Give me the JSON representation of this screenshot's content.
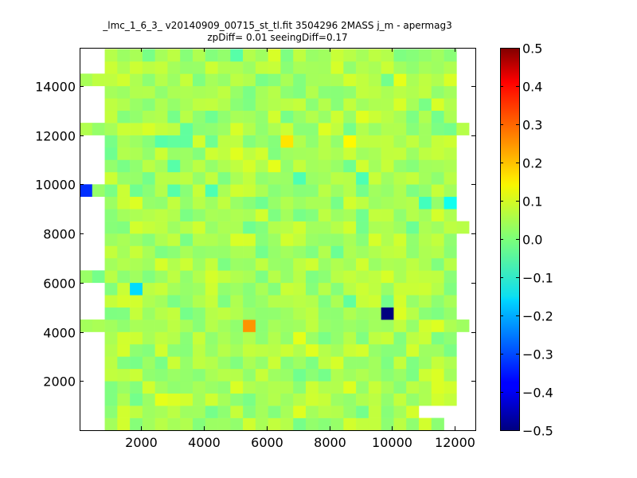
{
  "chart_data": {
    "type": "heatmap",
    "title": "_lmc_1_6_3_ v20140909_00715_st_tl.fit 3504296 2MASS j_m - apermag3",
    "subtitle": "zpDiff= 0.01 seeingDiff=0.17",
    "xlabel": "",
    "ylabel": "",
    "xlim": [
      50,
      12650
    ],
    "ylim": [
      0,
      15550
    ],
    "x_ticks": [
      2000,
      4000,
      6000,
      8000,
      10000,
      12000
    ],
    "y_ticks": [
      2000,
      4000,
      6000,
      8000,
      10000,
      12000,
      14000
    ],
    "grid": false,
    "colormap": "jet",
    "colorbar": {
      "vmin": -0.5,
      "vmax": 0.5,
      "ticks": [
        -0.5,
        -0.4,
        -0.3,
        -0.2,
        -0.1,
        0.0,
        0.1,
        0.2,
        0.3,
        0.4,
        0.5
      ],
      "tick_labels": [
        "−0.5",
        "−0.4",
        "−0.3",
        "−0.2",
        "−0.1",
        "0.0",
        "0.1",
        "0.2",
        "0.3",
        "0.4",
        "0.5"
      ]
    },
    "cell_size": [
      400,
      500
    ],
    "x_origin": 50,
    "y_origin": 0,
    "columns": 31,
    "rows": 31,
    "background_value": 0.04,
    "row_ranges": [
      {
        "row": 0,
        "cols": [
          2,
          28
        ]
      },
      {
        "row": 1,
        "cols": [
          2,
          26
        ]
      },
      {
        "row": 2,
        "cols": [
          2,
          29
        ]
      },
      {
        "row": 3,
        "cols": [
          2,
          29
        ]
      },
      {
        "row": 4,
        "cols": [
          2,
          29
        ]
      },
      {
        "row": 5,
        "cols": [
          2,
          29
        ]
      },
      {
        "row": 6,
        "cols": [
          2,
          29
        ]
      },
      {
        "row": 7,
        "cols": [
          2,
          29
        ]
      },
      {
        "row": 8,
        "cols": [
          0,
          30
        ]
      },
      {
        "row": 9,
        "cols": [
          2,
          29
        ]
      },
      {
        "row": 10,
        "cols": [
          2,
          29
        ]
      },
      {
        "row": 11,
        "cols": [
          2,
          29
        ]
      },
      {
        "row": 12,
        "cols": [
          0,
          29
        ]
      },
      {
        "row": 13,
        "cols": [
          2,
          29
        ]
      },
      {
        "row": 14,
        "cols": [
          2,
          29
        ]
      },
      {
        "row": 15,
        "cols": [
          2,
          29
        ]
      },
      {
        "row": 16,
        "cols": [
          2,
          30
        ]
      },
      {
        "row": 17,
        "cols": [
          2,
          29
        ]
      },
      {
        "row": 18,
        "cols": [
          2,
          29
        ]
      },
      {
        "row": 19,
        "cols": [
          0,
          29
        ]
      },
      {
        "row": 20,
        "cols": [
          2,
          29
        ]
      },
      {
        "row": 21,
        "cols": [
          2,
          29
        ]
      },
      {
        "row": 22,
        "cols": [
          2,
          29
        ]
      },
      {
        "row": 23,
        "cols": [
          2,
          29
        ]
      },
      {
        "row": 24,
        "cols": [
          0,
          30
        ]
      },
      {
        "row": 25,
        "cols": [
          2,
          29
        ]
      },
      {
        "row": 26,
        "cols": [
          2,
          29
        ]
      },
      {
        "row": 27,
        "cols": [
          2,
          29
        ]
      },
      {
        "row": 28,
        "cols": [
          0,
          29
        ]
      },
      {
        "row": 29,
        "cols": [
          2,
          29
        ]
      },
      {
        "row": 30,
        "cols": [
          2,
          29
        ]
      }
    ],
    "cells": [
      {
        "col": 0,
        "row": 19,
        "value": -0.33
      },
      {
        "col": 4,
        "row": 11,
        "value": -0.16
      },
      {
        "col": 13,
        "row": 8,
        "value": 0.23
      },
      {
        "col": 24,
        "row": 9,
        "value": -0.5
      },
      {
        "col": 16,
        "row": 23,
        "value": 0.15
      },
      {
        "col": 21,
        "row": 23,
        "value": 0.13
      },
      {
        "col": 29,
        "row": 18,
        "value": -0.11
      },
      {
        "col": 27,
        "row": 18,
        "value": -0.06
      },
      {
        "col": 17,
        "row": 20,
        "value": -0.05
      },
      {
        "col": 22,
        "row": 20,
        "value": -0.05
      },
      {
        "col": 10,
        "row": 19,
        "value": -0.05
      },
      {
        "col": 7,
        "row": 19,
        "value": -0.04
      },
      {
        "col": 7,
        "row": 21,
        "value": -0.04
      },
      {
        "col": 6,
        "row": 23,
        "value": -0.04
      },
      {
        "col": 7,
        "row": 23,
        "value": -0.03
      },
      {
        "col": 8,
        "row": 24,
        "value": -0.03
      },
      {
        "col": 8,
        "row": 23,
        "value": -0.03
      },
      {
        "col": 21,
        "row": 10,
        "value": -0.03
      },
      {
        "col": 15,
        "row": 21,
        "value": 0.1
      },
      {
        "col": 12,
        "row": 30,
        "value": -0.04
      },
      {
        "col": 25,
        "row": 28,
        "value": 0.1
      },
      {
        "col": 7,
        "row": 12,
        "value": 0.06
      },
      {
        "col": 3,
        "row": 1,
        "value": 0.08
      },
      {
        "col": 3,
        "row": 0,
        "value": 0.08
      },
      {
        "col": 6,
        "row": 2,
        "value": 0.1
      },
      {
        "col": 7,
        "row": 2,
        "value": 0.09
      },
      {
        "col": 8,
        "row": 2,
        "value": 0.08
      },
      {
        "col": 28,
        "row": 3,
        "value": 0.09
      },
      {
        "col": 28,
        "row": 2,
        "value": 0.08
      },
      {
        "col": 17,
        "row": 7,
        "value": 0.1
      },
      {
        "col": 14,
        "row": 22,
        "value": 0.08
      },
      {
        "col": 0,
        "row": 28,
        "value": 0.04
      },
      {
        "col": 25,
        "row": 16,
        "value": 0.03
      },
      {
        "col": 26,
        "row": 16,
        "value": -0.02
      },
      {
        "col": 3,
        "row": 9,
        "value": 0.0
      },
      {
        "col": 22,
        "row": 7,
        "value": 0.0
      },
      {
        "col": 18,
        "row": 14,
        "value": 0.0
      },
      {
        "col": 20,
        "row": 14,
        "value": -0.02
      }
    ]
  }
}
